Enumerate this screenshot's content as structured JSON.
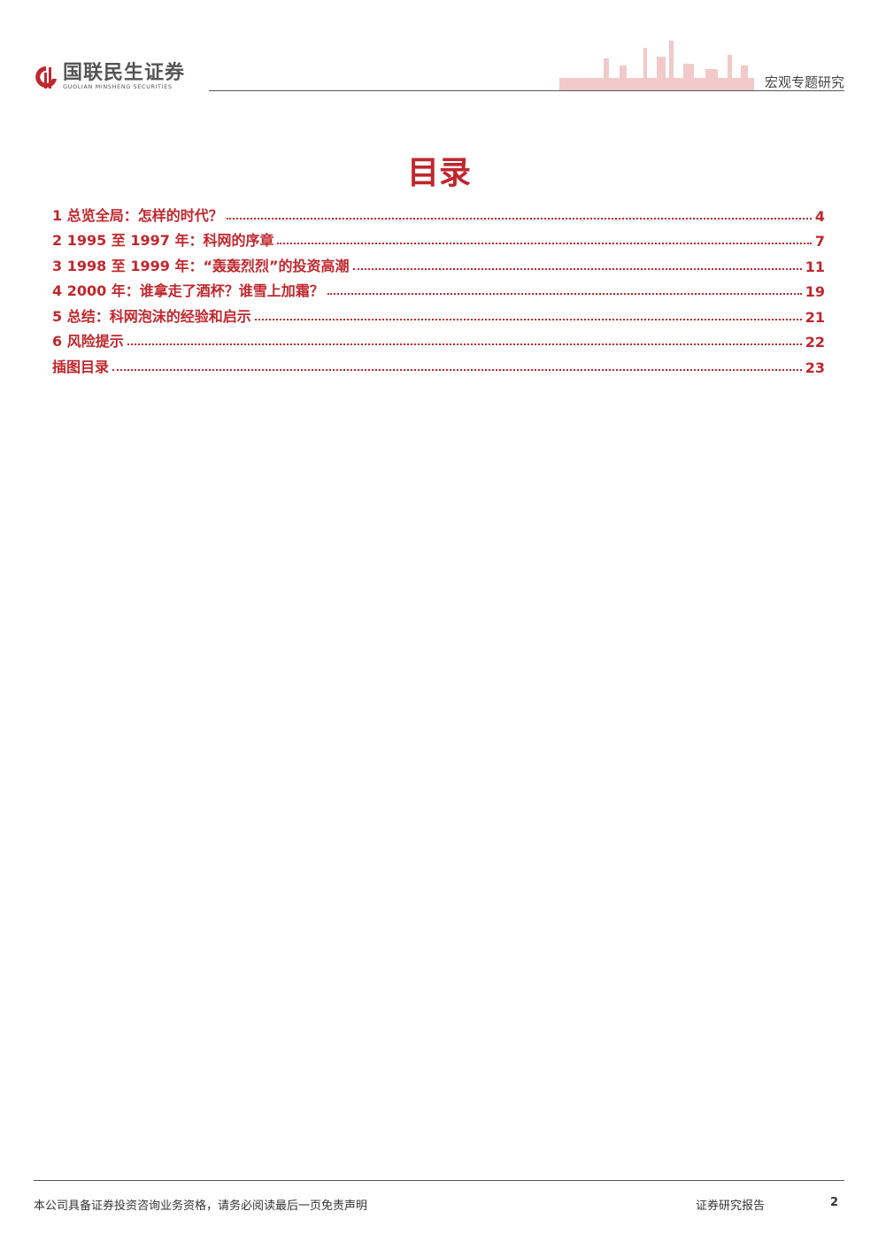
{
  "header": {
    "logo_cn": "国联民生证券",
    "logo_en": "GUOLIAN MINSHENG SECURITIES",
    "report_type": "宏观专题研究",
    "brand_color": "#c0272d"
  },
  "title": "目录",
  "toc": [
    {
      "label": "1  总览全局：怎样的时代？",
      "page": "4"
    },
    {
      "label": "2 1995 至 1997 年：科网的序章",
      "page": "7"
    },
    {
      "label": "3 1998 至 1999 年：“轰轰烈烈”的投资高潮",
      "page": "11"
    },
    {
      "label": "4 2000 年：谁拿走了酒杯？谁雪上加霜？",
      "page": "19"
    },
    {
      "label": "5  总结：科网泡沫的经验和启示",
      "page": "21"
    },
    {
      "label": "6  风险提示",
      "page": "22"
    },
    {
      "label": "插图目录",
      "page": "23"
    }
  ],
  "footer": {
    "disclaimer": "本公司具备证券投资咨询业务资格，请务必阅读最后一页免责声明",
    "doc_type": "证券研究报告",
    "page_number": "2"
  }
}
